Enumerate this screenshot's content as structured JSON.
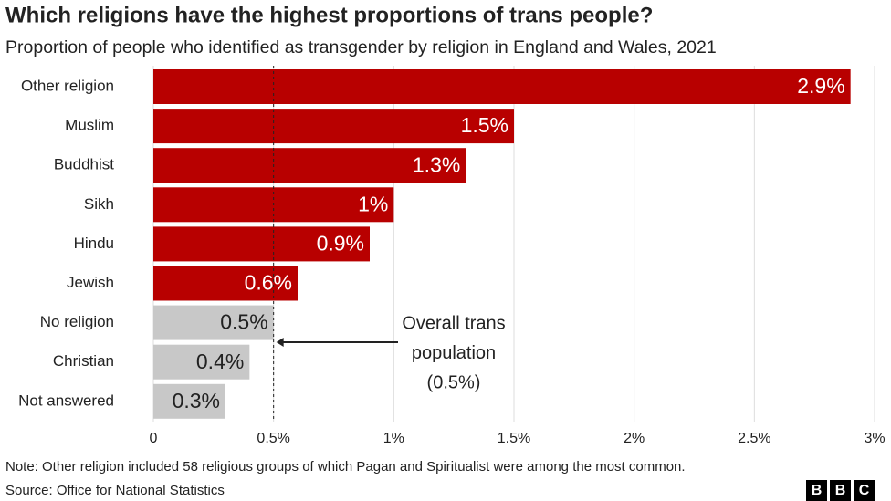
{
  "chart_data": {
    "type": "hbar",
    "title": "Which religions have the highest proportions of trans people?",
    "subtitle": "Proportion of people who identified as transgender by religion in England and Wales, 2021",
    "categories": [
      "Other religion",
      "Muslim",
      "Buddhist",
      "Sikh",
      "Hindu",
      "Jewish",
      "No religion",
      "Christian",
      "Not answered"
    ],
    "values": [
      2.9,
      1.5,
      1.3,
      1,
      0.9,
      0.6,
      0.5,
      0.4,
      0.3
    ],
    "value_labels": [
      "2.9%",
      "1.5%",
      "1.3%",
      "1%",
      "0.9%",
      "0.6%",
      "0.5%",
      "0.4%",
      "0.3%"
    ],
    "colors": [
      "#b80000",
      "#b80000",
      "#b80000",
      "#b80000",
      "#b80000",
      "#b80000",
      "#c8c8c8",
      "#c8c8c8",
      "#c8c8c8"
    ],
    "xlim": [
      0,
      3
    ],
    "xticks": [
      0,
      {
        "value": 0.5,
        "label": "0.5%"
      },
      {
        "value": 1,
        "label": "1%"
      },
      {
        "value": 1.5,
        "label": "1.5%"
      },
      {
        "value": 2,
        "label": "2%"
      },
      {
        "value": 2.5,
        "label": "2.5%"
      },
      {
        "value": 3,
        "label": "3%"
      }
    ],
    "grid": true,
    "reference_line": 0.5,
    "annotation": [
      "Overall trans",
      "population",
      "(0.5%)"
    ],
    "note": "Note: Other religion included 58 religious groups of which Pagan and Spiritualist were among the most common.",
    "source": "Source: Office for National Statistics",
    "logo": [
      "B",
      "B",
      "C"
    ]
  }
}
